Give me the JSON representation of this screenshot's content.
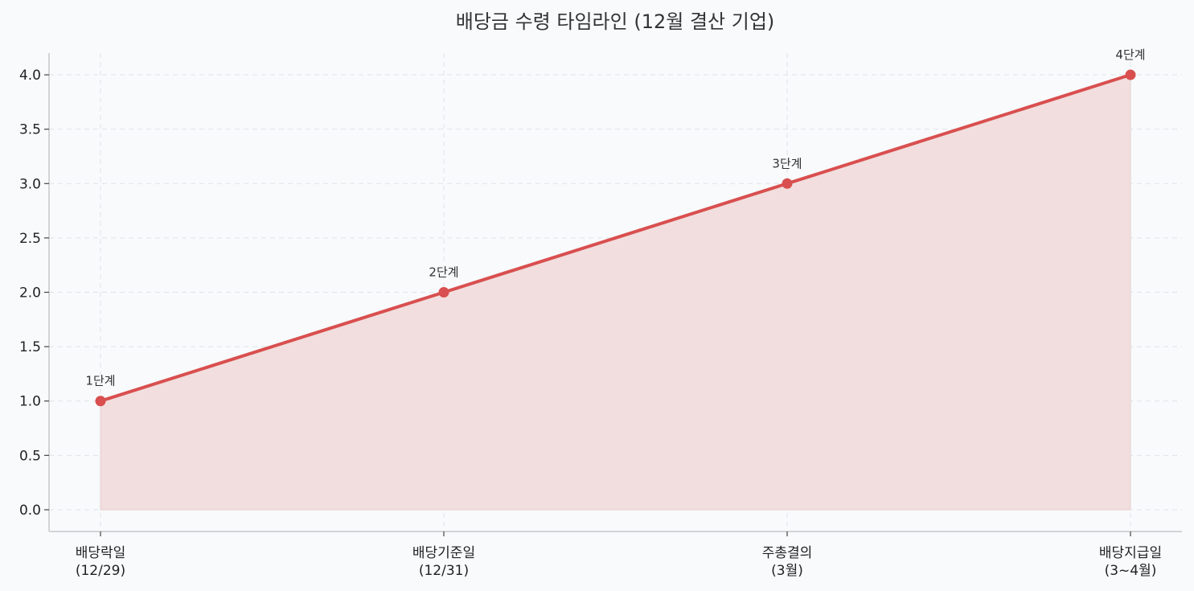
{
  "chart_data": {
    "type": "line",
    "title": "배당금 수령 타임라인 (12월 결산 기업)",
    "xlabel": "",
    "ylabel": "",
    "categories": [
      [
        "배당락일",
        "(12/29)"
      ],
      [
        "배당기준일",
        "(12/31)"
      ],
      [
        "주총결의",
        "(3월)"
      ],
      [
        "배당지급일",
        "(3~4월)"
      ]
    ],
    "series": [
      {
        "values": [
          1,
          2,
          3,
          4
        ]
      }
    ],
    "point_labels": [
      "1단계",
      "2단계",
      "3단계",
      "4단계"
    ],
    "ylim": [
      -0.2,
      4.2
    ],
    "yticks": [
      "0.0",
      "0.5",
      "1.0",
      "1.5",
      "2.0",
      "2.5",
      "3.0",
      "3.5",
      "4.0"
    ],
    "ytick_values": [
      0,
      0.5,
      1,
      1.5,
      2,
      2.5,
      3,
      3.5,
      4
    ],
    "area_fill": true,
    "grid": true,
    "colors": {
      "line": "#d94f4f",
      "fill": "#f2dede",
      "background": "#f8fafc"
    }
  }
}
